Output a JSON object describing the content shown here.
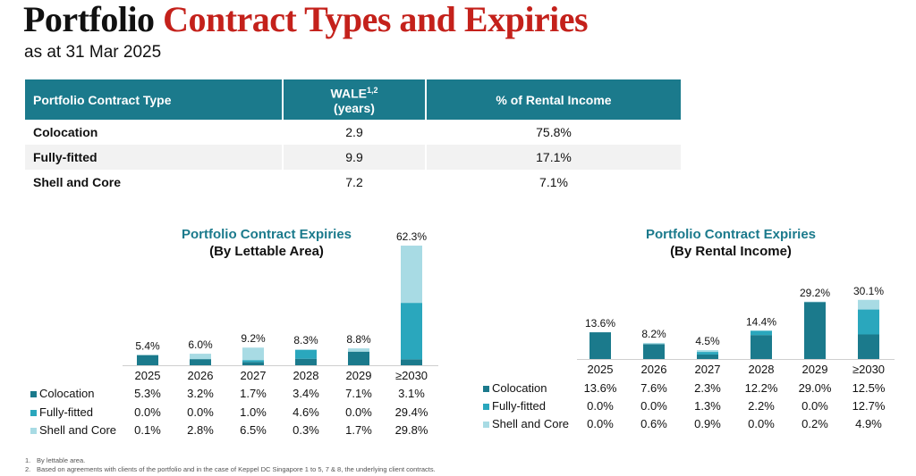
{
  "header": {
    "title_part1": "Portfolio",
    "title_part2": "Contract Types and Expiries",
    "subtitle": "as at 31 Mar 2025"
  },
  "summary_table": {
    "headers": [
      "Portfolio Contract Type",
      "WALE",
      "1,2",
      "(years)",
      "% of Rental Income"
    ],
    "rows": [
      {
        "type": "Colocation",
        "wale": "2.9",
        "rental": "75.8%"
      },
      {
        "type": "Fully-fitted",
        "wale": "9.9",
        "rental": "17.1%"
      },
      {
        "type": "Shell and Core",
        "wale": "7.2",
        "rental": "7.1%"
      }
    ]
  },
  "colors": {
    "brand_red": "#c4211b",
    "header_teal": "#1b7a8c",
    "colocation": "#1b7a8c",
    "fully_fitted": "#2aa7bd",
    "shell_and_core": "#a8dbe4"
  },
  "chart_data": [
    {
      "type": "bar",
      "stacked": true,
      "title": "Portfolio Contract Expiries",
      "subtitle": "(By Lettable Area)",
      "categories": [
        "2025",
        "2026",
        "2027",
        "2028",
        "2029",
        "≥2030"
      ],
      "totals": [
        "5.4%",
        "6.0%",
        "9.2%",
        "8.3%",
        "8.8%",
        "62.3%"
      ],
      "series": [
        {
          "name": "Colocation",
          "values": [
            5.3,
            3.2,
            1.7,
            3.4,
            7.1,
            3.1
          ],
          "labels": [
            "5.3%",
            "3.2%",
            "1.7%",
            "3.4%",
            "7.1%",
            "3.1%"
          ]
        },
        {
          "name": "Fully-fitted",
          "values": [
            0.0,
            0.0,
            1.0,
            4.6,
            0.0,
            29.4
          ],
          "labels": [
            "0.0%",
            "0.0%",
            "1.0%",
            "4.6%",
            "0.0%",
            "29.4%"
          ]
        },
        {
          "name": "Shell and Core",
          "values": [
            0.1,
            2.8,
            6.5,
            0.3,
            1.7,
            29.8
          ],
          "labels": [
            "0.1%",
            "2.8%",
            "6.5%",
            "0.3%",
            "1.7%",
            "29.8%"
          ]
        }
      ],
      "legend": "bottom-left"
    },
    {
      "type": "bar",
      "stacked": true,
      "title": "Portfolio Contract Expiries",
      "subtitle": "(By Rental Income)",
      "categories": [
        "2025",
        "2026",
        "2027",
        "2028",
        "2029",
        "≥2030"
      ],
      "totals": [
        "13.6%",
        "8.2%",
        "4.5%",
        "14.4%",
        "29.2%",
        "30.1%"
      ],
      "series": [
        {
          "name": "Colocation",
          "values": [
            13.6,
            7.6,
            2.3,
            12.2,
            29.0,
            12.5
          ],
          "labels": [
            "13.6%",
            "7.6%",
            "2.3%",
            "12.2%",
            "29.0%",
            "12.5%"
          ]
        },
        {
          "name": "Fully-fitted",
          "values": [
            0.0,
            0.0,
            1.3,
            2.2,
            0.0,
            12.7
          ],
          "labels": [
            "0.0%",
            "0.0%",
            "1.3%",
            "2.2%",
            "0.0%",
            "12.7%"
          ]
        },
        {
          "name": "Shell and Core",
          "values": [
            0.0,
            0.6,
            0.9,
            0.0,
            0.2,
            4.9
          ],
          "labels": [
            "0.0%",
            "0.6%",
            "0.9%",
            "0.0%",
            "0.2%",
            "4.9%"
          ]
        }
      ],
      "legend": "bottom-left"
    }
  ],
  "footnotes": [
    {
      "num": "1.",
      "text": "By lettable area."
    },
    {
      "num": "2.",
      "text": "Based on agreements with clients of the portfolio and in the case of Keppel DC Singapore 1 to 5, 7 & 8, the underlying client contracts."
    }
  ]
}
